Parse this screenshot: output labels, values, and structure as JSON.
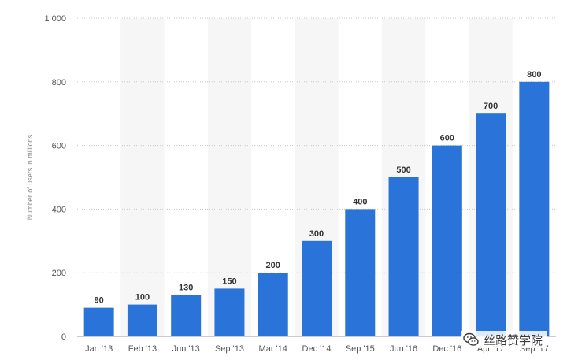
{
  "chart_data": {
    "type": "bar",
    "categories": [
      "Jan '13",
      "Feb '13",
      "Jun '13",
      "Sep '13",
      "Mar '14",
      "Dec '14",
      "Sep '15",
      "Jun '16",
      "Dec '16",
      "Apr '17",
      "Sep '17"
    ],
    "values": [
      90,
      100,
      130,
      150,
      200,
      300,
      400,
      500,
      600,
      700,
      800
    ],
    "data_labels": [
      "90",
      "100",
      "130",
      "150",
      "200",
      "300",
      "400",
      "500",
      "600",
      "700",
      "800"
    ],
    "ylabel": "Number of users in millions",
    "ylim": [
      0,
      1000
    ],
    "yticks": [
      0,
      200,
      400,
      600,
      800,
      1000
    ],
    "ytick_labels": [
      "0",
      "200",
      "400",
      "600",
      "800",
      "1 000"
    ],
    "grid": "horizontal dotted",
    "bar_color": "#2a73d9",
    "alt_band_color": "#f6f6f6"
  },
  "watermark": {
    "text": "丝路赞学院",
    "icon": "wechat-icon"
  }
}
